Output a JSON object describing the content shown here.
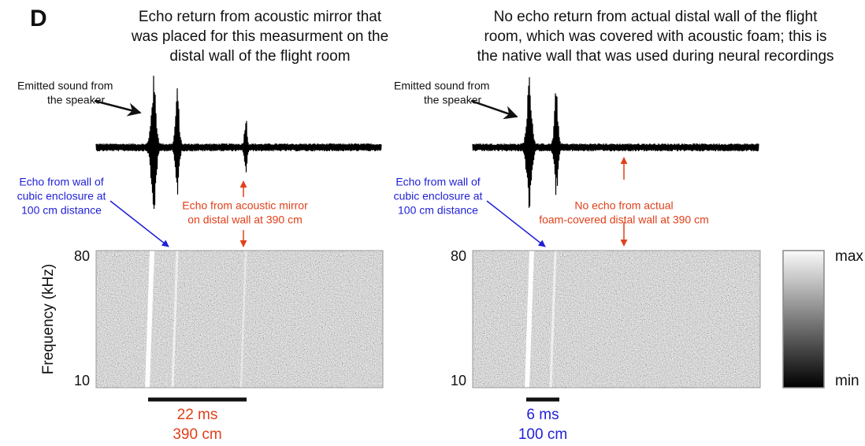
{
  "panel_label": "D",
  "y_axis_label": "Frequency (kHz)",
  "colorbar": {
    "max_label": "max",
    "min_label": "min"
  },
  "panels": [
    {
      "title_lines": [
        "Echo return from acoustic mirror that",
        "was placed for this measurment on the",
        "distal wall of the flight room"
      ],
      "speaker_note_lines": [
        "Emitted sound from",
        "the speaker"
      ],
      "blue_note_lines": [
        "Echo from wall of",
        "cubic enclosure at",
        "100 cm distance"
      ],
      "red_note_lines": [
        "Echo from acoustic mirror",
        "on distal wall at 390 cm"
      ],
      "yticks": [
        80,
        10
      ],
      "scale_bar": {
        "time": "22 ms",
        "distance": "390 cm"
      }
    },
    {
      "title_lines": [
        "No echo return from actual distal wall of the flight",
        "room, which was covered with acoustic foam; this is",
        "the native wall that was used during neural recordings"
      ],
      "speaker_note_lines": [
        "Emitted sound from",
        "the speaker"
      ],
      "blue_note_lines": [
        "Echo from wall of",
        "cubic enclosure at",
        "100 cm distance"
      ],
      "red_note_lines": [
        "No echo from actual",
        "foam-covered distal wall at 390 cm"
      ],
      "yticks": [
        80,
        10
      ],
      "scale_bar": {
        "time": "6 ms",
        "distance": "100 cm"
      }
    }
  ]
}
